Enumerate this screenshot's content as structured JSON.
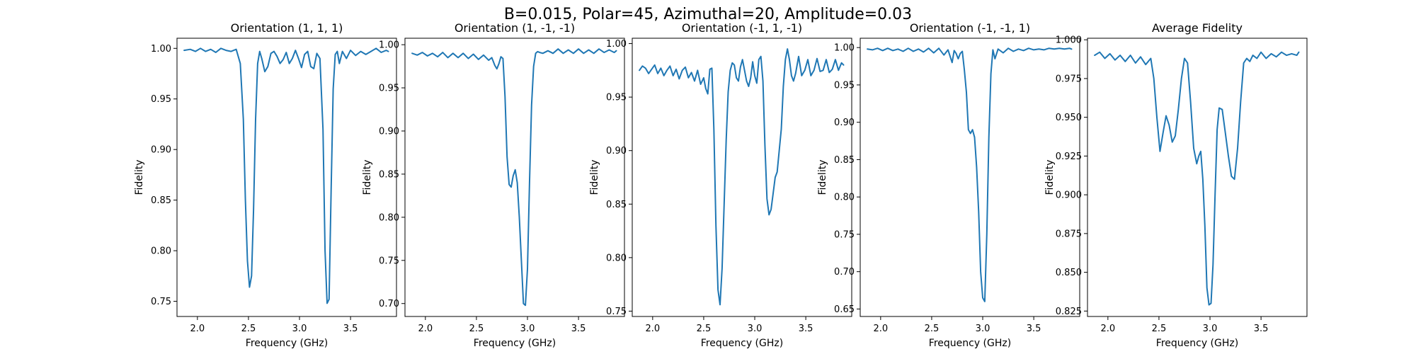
{
  "figure": {
    "title": "B=0.015, Polar=45, Azimuthal=20, Amplitude=0.03"
  },
  "colors": {
    "series": "#1f77b4",
    "axis": "#000000"
  },
  "chart_data": [
    {
      "type": "line",
      "title": "Orientation (1, 1, 1)",
      "xlabel": "Frequency (GHz)",
      "ylabel": "Fidelity",
      "xlim": [
        1.8,
        3.95
      ],
      "ylim": [
        0.735,
        1.01
      ],
      "xticks": [
        2.0,
        2.5,
        3.0,
        3.5
      ],
      "xtick_labels": [
        "2.0",
        "2.5",
        "3.0",
        "3.5"
      ],
      "yticks": [
        0.75,
        0.8,
        0.85,
        0.9,
        0.95,
        1.0
      ],
      "ytick_labels": [
        "0.75",
        "0.80",
        "0.85",
        "0.90",
        "0.95",
        "1.00"
      ],
      "grid": false,
      "series": [
        {
          "x": [
            1.87,
            1.93,
            1.98,
            2.03,
            2.08,
            2.13,
            2.18,
            2.23,
            2.28,
            2.33,
            2.38,
            2.42,
            2.45,
            2.47,
            2.49,
            2.51,
            2.53,
            2.55,
            2.57,
            2.59,
            2.61,
            2.63,
            2.66,
            2.69,
            2.72,
            2.75,
            2.78,
            2.81,
            2.84,
            2.87,
            2.9,
            2.93,
            2.96,
            2.99,
            3.02,
            3.05,
            3.08,
            3.11,
            3.14,
            3.17,
            3.2,
            3.23,
            3.25,
            3.27,
            3.29,
            3.31,
            3.33,
            3.35,
            3.37,
            3.39,
            3.42,
            3.46,
            3.5,
            3.55,
            3.6,
            3.65,
            3.7,
            3.75,
            3.8,
            3.85,
            3.87
          ],
          "y": [
            0.998,
            0.999,
            0.997,
            1.0,
            0.997,
            0.999,
            0.996,
            1.0,
            0.998,
            0.997,
            0.999,
            0.985,
            0.93,
            0.85,
            0.79,
            0.764,
            0.775,
            0.84,
            0.93,
            0.985,
            0.997,
            0.99,
            0.977,
            0.982,
            0.995,
            0.997,
            0.992,
            0.985,
            0.989,
            0.996,
            0.985,
            0.99,
            0.998,
            0.99,
            0.981,
            0.994,
            0.997,
            0.982,
            0.98,
            0.995,
            0.99,
            0.92,
            0.8,
            0.748,
            0.752,
            0.86,
            0.96,
            0.994,
            0.997,
            0.985,
            0.997,
            0.99,
            0.998,
            0.993,
            0.997,
            0.994,
            0.997,
            1.0,
            0.996,
            0.998,
            0.997
          ]
        }
      ]
    },
    {
      "type": "line",
      "title": "Orientation (1, -1, -1)",
      "xlabel": "Frequency (GHz)",
      "ylabel": "Fidelity",
      "xlim": [
        1.8,
        3.95
      ],
      "ylim": [
        0.685,
        1.0075
      ],
      "xticks": [
        2.0,
        2.5,
        3.0,
        3.5
      ],
      "xtick_labels": [
        "2.0",
        "2.5",
        "3.0",
        "3.5"
      ],
      "yticks": [
        0.7,
        0.75,
        0.8,
        0.85,
        0.9,
        0.95,
        1.0
      ],
      "ytick_labels": [
        "0.70",
        "0.75",
        "0.80",
        "0.85",
        "0.90",
        "0.95",
        "1.00"
      ],
      "grid": false,
      "series": [
        {
          "x": [
            1.87,
            1.92,
            1.97,
            2.02,
            2.07,
            2.12,
            2.17,
            2.22,
            2.27,
            2.32,
            2.37,
            2.42,
            2.47,
            2.52,
            2.57,
            2.62,
            2.65,
            2.68,
            2.7,
            2.72,
            2.74,
            2.76,
            2.78,
            2.8,
            2.82,
            2.84,
            2.86,
            2.88,
            2.9,
            2.92,
            2.94,
            2.96,
            2.98,
            3.0,
            3.02,
            3.04,
            3.06,
            3.08,
            3.1,
            3.12,
            3.15,
            3.2,
            3.25,
            3.3,
            3.35,
            3.4,
            3.45,
            3.5,
            3.55,
            3.6,
            3.65,
            3.7,
            3.75,
            3.8,
            3.85,
            3.87
          ],
          "y": [
            0.99,
            0.988,
            0.991,
            0.987,
            0.99,
            0.986,
            0.991,
            0.985,
            0.99,
            0.985,
            0.99,
            0.984,
            0.989,
            0.983,
            0.988,
            0.982,
            0.985,
            0.976,
            0.972,
            0.978,
            0.986,
            0.984,
            0.94,
            0.87,
            0.838,
            0.835,
            0.848,
            0.855,
            0.84,
            0.8,
            0.75,
            0.7,
            0.698,
            0.74,
            0.84,
            0.93,
            0.975,
            0.99,
            0.992,
            0.991,
            0.99,
            0.993,
            0.99,
            0.995,
            0.99,
            0.994,
            0.99,
            0.995,
            0.99,
            0.994,
            0.99,
            0.995,
            0.991,
            0.994,
            0.991,
            0.993
          ]
        }
      ]
    },
    {
      "type": "line",
      "title": "Orientation (-1, 1, -1)",
      "xlabel": "Frequency (GHz)",
      "ylabel": "Fidelity",
      "xlim": [
        1.8,
        3.95
      ],
      "ylim": [
        0.745,
        1.005
      ],
      "xticks": [
        2.0,
        2.5,
        3.0,
        3.5
      ],
      "xtick_labels": [
        "2.0",
        "2.5",
        "3.0",
        "3.5"
      ],
      "yticks": [
        0.75,
        0.8,
        0.85,
        0.9,
        0.95,
        1.0
      ],
      "ytick_labels": [
        "0.75",
        "0.80",
        "0.85",
        "0.90",
        "0.95",
        "1.00"
      ],
      "grid": false,
      "series": [
        {
          "x": [
            1.87,
            1.9,
            1.93,
            1.96,
            1.99,
            2.02,
            2.05,
            2.08,
            2.11,
            2.14,
            2.17,
            2.2,
            2.23,
            2.26,
            2.29,
            2.32,
            2.35,
            2.38,
            2.41,
            2.44,
            2.47,
            2.5,
            2.52,
            2.54,
            2.56,
            2.58,
            2.6,
            2.62,
            2.64,
            2.66,
            2.68,
            2.7,
            2.72,
            2.74,
            2.76,
            2.78,
            2.8,
            2.82,
            2.84,
            2.86,
            2.88,
            2.9,
            2.92,
            2.94,
            2.96,
            2.98,
            3.0,
            3.02,
            3.04,
            3.06,
            3.08,
            3.1,
            3.12,
            3.14,
            3.16,
            3.18,
            3.2,
            3.22,
            3.24,
            3.26,
            3.28,
            3.3,
            3.32,
            3.34,
            3.36,
            3.38,
            3.4,
            3.43,
            3.46,
            3.49,
            3.52,
            3.55,
            3.58,
            3.61,
            3.64,
            3.67,
            3.7,
            3.73,
            3.76,
            3.79,
            3.82,
            3.85,
            3.87
          ],
          "y": [
            0.975,
            0.979,
            0.977,
            0.972,
            0.976,
            0.98,
            0.972,
            0.977,
            0.97,
            0.975,
            0.979,
            0.97,
            0.976,
            0.967,
            0.975,
            0.978,
            0.968,
            0.973,
            0.965,
            0.975,
            0.962,
            0.968,
            0.958,
            0.953,
            0.976,
            0.977,
            0.92,
            0.83,
            0.77,
            0.756,
            0.79,
            0.85,
            0.91,
            0.955,
            0.975,
            0.982,
            0.98,
            0.968,
            0.965,
            0.978,
            0.985,
            0.975,
            0.965,
            0.96,
            0.968,
            0.983,
            0.97,
            0.963,
            0.985,
            0.988,
            0.965,
            0.905,
            0.855,
            0.84,
            0.845,
            0.86,
            0.875,
            0.88,
            0.9,
            0.92,
            0.96,
            0.985,
            0.995,
            0.985,
            0.97,
            0.965,
            0.972,
            0.988,
            0.97,
            0.975,
            0.985,
            0.97,
            0.975,
            0.986,
            0.974,
            0.975,
            0.985,
            0.973,
            0.976,
            0.985,
            0.975,
            0.982,
            0.98
          ]
        }
      ]
    },
    {
      "type": "line",
      "title": "Orientation (-1, -1, 1)",
      "xlabel": "Frequency (GHz)",
      "ylabel": "Fidelity",
      "xlim": [
        1.8,
        3.95
      ],
      "ylim": [
        0.64,
        1.0125
      ],
      "xticks": [
        2.0,
        2.5,
        3.0,
        3.5
      ],
      "xtick_labels": [
        "2.0",
        "2.5",
        "3.0",
        "3.5"
      ],
      "yticks": [
        0.65,
        0.7,
        0.75,
        0.8,
        0.85,
        0.9,
        0.95,
        1.0
      ],
      "ytick_labels": [
        "0.65",
        "0.70",
        "0.75",
        "0.80",
        "0.85",
        "0.90",
        "0.95",
        "1.00"
      ],
      "grid": false,
      "series": [
        {
          "x": [
            1.87,
            1.92,
            1.97,
            2.02,
            2.07,
            2.12,
            2.17,
            2.22,
            2.27,
            2.32,
            2.37,
            2.42,
            2.47,
            2.52,
            2.57,
            2.62,
            2.66,
            2.7,
            2.72,
            2.74,
            2.76,
            2.78,
            2.8,
            2.82,
            2.84,
            2.86,
            2.88,
            2.9,
            2.92,
            2.94,
            2.96,
            2.98,
            3.0,
            3.02,
            3.04,
            3.06,
            3.08,
            3.1,
            3.12,
            3.15,
            3.2,
            3.25,
            3.3,
            3.35,
            3.4,
            3.45,
            3.5,
            3.55,
            3.6,
            3.65,
            3.7,
            3.75,
            3.8,
            3.85,
            3.87
          ],
          "y": [
            0.998,
            0.997,
            0.999,
            0.996,
            0.999,
            0.996,
            0.998,
            0.995,
            0.999,
            0.995,
            0.998,
            0.994,
            0.999,
            0.993,
            0.999,
            0.99,
            0.997,
            0.98,
            0.996,
            0.992,
            0.985,
            0.992,
            0.995,
            0.97,
            0.94,
            0.89,
            0.885,
            0.89,
            0.88,
            0.84,
            0.78,
            0.7,
            0.665,
            0.66,
            0.75,
            0.88,
            0.965,
            0.997,
            0.985,
            0.998,
            0.993,
            0.999,
            0.995,
            0.998,
            0.996,
            0.999,
            0.997,
            0.998,
            0.997,
            0.999,
            0.998,
            0.999,
            0.998,
            0.999,
            0.998
          ]
        }
      ]
    },
    {
      "type": "line",
      "title": "Average Fidelity",
      "xlabel": "Frequency (GHz)",
      "ylabel": "Fidelity",
      "xlim": [
        1.8,
        3.95
      ],
      "ylim": [
        0.8215,
        1.001
      ],
      "xticks": [
        2.0,
        2.5,
        3.0,
        3.5
      ],
      "xtick_labels": [
        "2.0",
        "2.5",
        "3.0",
        "3.5"
      ],
      "yticks": [
        0.825,
        0.85,
        0.875,
        0.9,
        0.925,
        0.95,
        0.975,
        1.0
      ],
      "ytick_labels": [
        "0.825",
        "0.850",
        "0.875",
        "0.900",
        "0.925",
        "0.950",
        "0.975",
        "1.000"
      ],
      "grid": false,
      "series": [
        {
          "x": [
            1.87,
            1.92,
            1.97,
            2.02,
            2.07,
            2.12,
            2.17,
            2.22,
            2.27,
            2.32,
            2.37,
            2.42,
            2.45,
            2.48,
            2.51,
            2.54,
            2.57,
            2.6,
            2.63,
            2.66,
            2.69,
            2.72,
            2.75,
            2.78,
            2.81,
            2.84,
            2.87,
            2.89,
            2.91,
            2.93,
            2.95,
            2.97,
            2.99,
            3.01,
            3.03,
            3.05,
            3.07,
            3.09,
            3.12,
            3.15,
            3.18,
            3.21,
            3.24,
            3.27,
            3.3,
            3.33,
            3.36,
            3.39,
            3.42,
            3.46,
            3.5,
            3.55,
            3.6,
            3.65,
            3.7,
            3.75,
            3.8,
            3.85,
            3.87
          ],
          "y": [
            0.99,
            0.992,
            0.988,
            0.991,
            0.987,
            0.99,
            0.986,
            0.99,
            0.985,
            0.989,
            0.984,
            0.988,
            0.975,
            0.95,
            0.928,
            0.94,
            0.951,
            0.945,
            0.934,
            0.938,
            0.955,
            0.975,
            0.988,
            0.985,
            0.96,
            0.93,
            0.92,
            0.925,
            0.928,
            0.91,
            0.88,
            0.84,
            0.829,
            0.83,
            0.855,
            0.9,
            0.942,
            0.956,
            0.955,
            0.94,
            0.925,
            0.912,
            0.91,
            0.93,
            0.96,
            0.985,
            0.988,
            0.986,
            0.99,
            0.988,
            0.992,
            0.988,
            0.991,
            0.989,
            0.992,
            0.99,
            0.991,
            0.99,
            0.992
          ]
        }
      ]
    }
  ]
}
